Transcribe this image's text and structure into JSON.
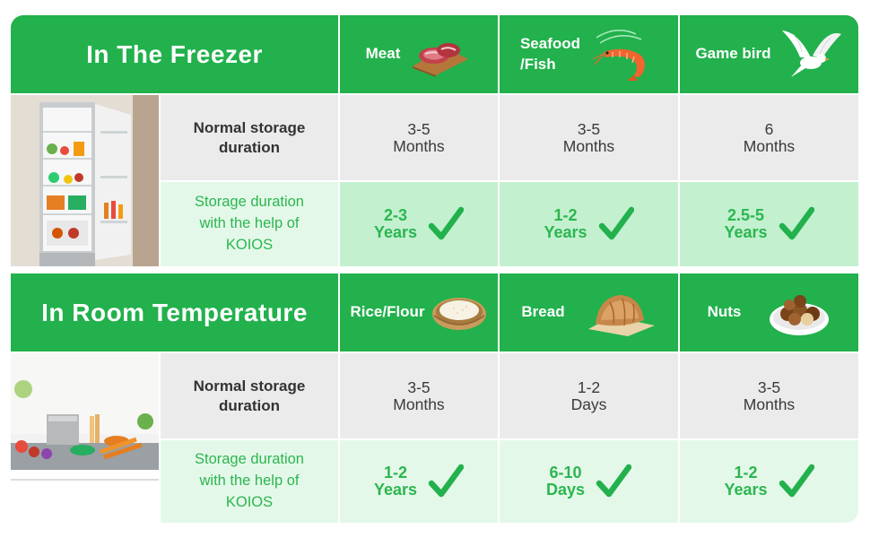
{
  "freezer": {
    "title": "In The Freezer",
    "columns": [
      {
        "label": "Meat",
        "icon": "meat-icon"
      },
      {
        "label": "Seafood\n/Fish",
        "icon": "shrimp-icon"
      },
      {
        "label": "Game bird",
        "icon": "bird-icon"
      }
    ],
    "normal_label": "Normal storage\nduration",
    "koios_label": "Storage duration\nwith the help of\nKOIOS",
    "normal": [
      [
        "3-5",
        "Months"
      ],
      [
        "3-5",
        "Months"
      ],
      [
        "6",
        "Months"
      ]
    ],
    "koios": [
      [
        "2-3",
        "Years"
      ],
      [
        "1-2",
        "Years"
      ],
      [
        "2.5-5",
        "Years"
      ]
    ]
  },
  "room": {
    "title": "In Room Temperature",
    "columns": [
      {
        "label": "Rice/Flour",
        "icon": "rice-bowl-icon"
      },
      {
        "label": "Bread",
        "icon": "bread-icon"
      },
      {
        "label": "Nuts",
        "icon": "nuts-bowl-icon"
      }
    ],
    "normal_label": "Normal storage\nduration",
    "koios_label": "Storage duration\nwith the help of\nKOIOS",
    "normal": [
      [
        "3-5",
        "Months"
      ],
      [
        "1-2",
        "Days"
      ],
      [
        "3-5",
        "Months"
      ]
    ],
    "koios": [
      [
        "1-2",
        "Years"
      ],
      [
        "6-10",
        "Days"
      ],
      [
        "1-2",
        "Years"
      ]
    ]
  },
  "colors": {
    "green": "#22b14c",
    "mint": "#c3f0cf",
    "grey": "#ebebeb",
    "check": "#22b14c"
  }
}
